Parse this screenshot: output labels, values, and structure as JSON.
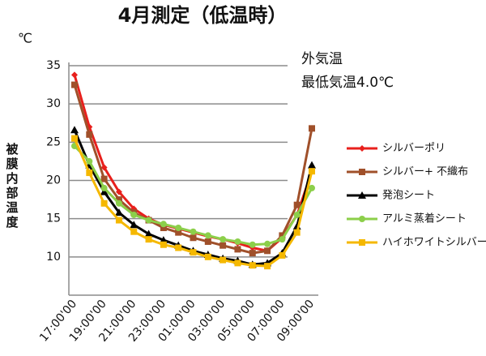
{
  "chart_data": {
    "type": "line",
    "title": "4月測定（低温時）",
    "y_unit": "℃",
    "y_label": "被膜内部温度",
    "annotations": [
      "外気温",
      "最低気温4.0℃"
    ],
    "categories": [
      "17:00'00",
      null,
      "19:00'00",
      null,
      "21:00'00",
      null,
      "23:00'00",
      null,
      "01:00'00",
      null,
      "03:00'00",
      null,
      "05:00'00",
      null,
      "07:00'00",
      null,
      "09:00'00"
    ],
    "ylim": [
      5,
      35
    ],
    "yticks": [
      10,
      15,
      20,
      25,
      30,
      35
    ],
    "grid": true,
    "series": [
      {
        "name": "シルバーポリ",
        "color": "#e8201c",
        "marker": "diamond",
        "values": [
          33.8,
          27,
          21.7,
          18.5,
          16.3,
          15,
          14.2,
          13.7,
          13.2,
          12.7,
          12.3,
          11.8,
          11.2,
          10.8,
          12.5,
          15.5,
          21.2
        ]
      },
      {
        "name": "シルバー+ 不織布",
        "color": "#a0502a",
        "marker": "square",
        "values": [
          32.5,
          26,
          20.2,
          17.5,
          15.8,
          14.8,
          13.8,
          13.2,
          12.5,
          12,
          11.5,
          11,
          10.5,
          10.8,
          12.8,
          16.8,
          26.8
        ]
      },
      {
        "name": "発泡シート",
        "color": "#000000",
        "marker": "triangle",
        "values": [
          26.6,
          22,
          18.5,
          15.8,
          14.2,
          13,
          12.2,
          11.5,
          10.8,
          10.3,
          9.8,
          9.5,
          9,
          9.2,
          10.5,
          14,
          22
        ]
      },
      {
        "name": "アルミ蒸着シート",
        "color": "#8ccf4a",
        "marker": "circle",
        "values": [
          24.5,
          22.5,
          19,
          17,
          15.5,
          14.8,
          14.3,
          13.8,
          13.3,
          12.8,
          12.3,
          12,
          11.6,
          11.7,
          12.3,
          15.5,
          19
        ]
      },
      {
        "name": "ハイホワイトシルバー",
        "color": "#f5b800",
        "marker": "square",
        "values": [
          25.5,
          21,
          17,
          14.8,
          13.3,
          12.3,
          11.6,
          11.2,
          10.6,
          10,
          9.6,
          9.2,
          8.9,
          8.8,
          10.2,
          13.2,
          21.2
        ]
      }
    ]
  }
}
